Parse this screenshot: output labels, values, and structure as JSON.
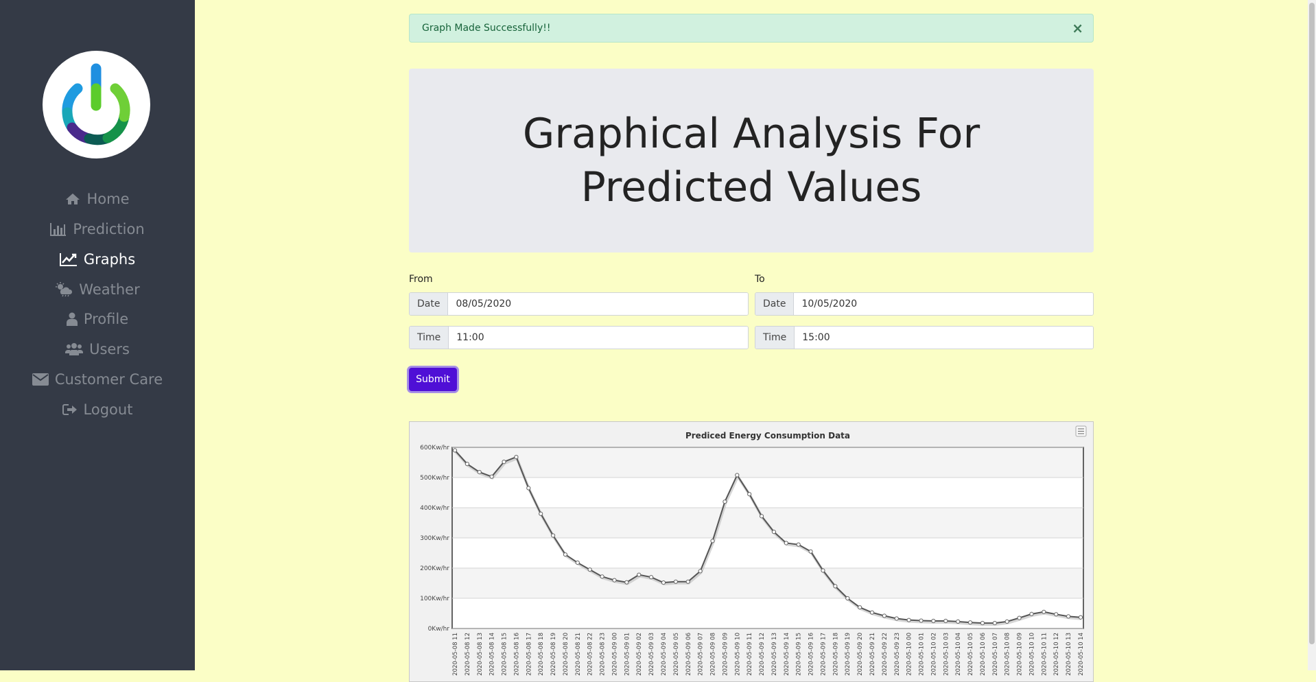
{
  "colors": {
    "sidebar_bg": "#343a46",
    "page_bg": "#fbfec6",
    "accent": "#4f0fd6",
    "success_bg": "#d1f1df",
    "nav_inactive": "#868b93",
    "nav_active": "#ffffff"
  },
  "sidebar": {
    "logo_icon": "power-icon",
    "items": [
      {
        "label": "Home",
        "icon": "home-icon",
        "active": false
      },
      {
        "label": "Prediction",
        "icon": "bar-chart-icon",
        "active": false
      },
      {
        "label": "Graphs",
        "icon": "line-chart-icon",
        "active": true
      },
      {
        "label": "Weather",
        "icon": "weather-icon",
        "active": false
      },
      {
        "label": "Profile",
        "icon": "user-icon",
        "active": false
      },
      {
        "label": "Users",
        "icon": "users-icon",
        "active": false
      },
      {
        "label": "Customer Care",
        "icon": "envelope-icon",
        "active": false
      },
      {
        "label": "Logout",
        "icon": "sign-out-icon",
        "active": false
      }
    ]
  },
  "alert": {
    "message": "Graph Made Successfully!!",
    "close": "×"
  },
  "page": {
    "title": "Graphical Analysis For Predicted Values"
  },
  "form": {
    "from_label": "From",
    "to_label": "To",
    "date_label": "Date",
    "time_label": "Time",
    "from_date": "08/05/2020",
    "from_time": "11:00",
    "to_date": "10/05/2020",
    "to_time": "15:00",
    "submit_label": "Submit"
  },
  "chart_data": {
    "type": "line",
    "title": "Prediced Energy Consumption Data",
    "xlabel": "",
    "ylabel": "",
    "ylim": [
      0,
      600
    ],
    "y_ticks": [
      0,
      100,
      200,
      300,
      400,
      500,
      600
    ],
    "y_unit": "Kw/hr",
    "grid": "horizontal bands",
    "menu_icon": "chart-menu-icon",
    "x": [
      "2020-05-08 11",
      "2020-05-08 12",
      "2020-05-08 13",
      "2020-05-08 14",
      "2020-05-08 15",
      "2020-05-08 16",
      "2020-05-08 17",
      "2020-05-08 18",
      "2020-05-08 19",
      "2020-05-08 20",
      "2020-05-08 21",
      "2020-05-08 22",
      "2020-05-08 23",
      "2020-05-09 00",
      "2020-05-09 01",
      "2020-05-09 02",
      "2020-05-09 03",
      "2020-05-09 04",
      "2020-05-09 05",
      "2020-05-09 06",
      "2020-05-09 07",
      "2020-05-09 08",
      "2020-05-09 09",
      "2020-05-09 10",
      "2020-05-09 11",
      "2020-05-09 12",
      "2020-05-09 13",
      "2020-05-09 14",
      "2020-05-09 15",
      "2020-05-09 16",
      "2020-05-09 17",
      "2020-05-09 18",
      "2020-05-09 19",
      "2020-05-09 20",
      "2020-05-09 21",
      "2020-05-09 22",
      "2020-05-09 23",
      "2020-05-10 00",
      "2020-05-10 01",
      "2020-05-10 02",
      "2020-05-10 03",
      "2020-05-10 04",
      "2020-05-10 05",
      "2020-05-10 06",
      "2020-05-10 07",
      "2020-05-10 08",
      "2020-05-10 09",
      "2020-05-10 10",
      "2020-05-10 11",
      "2020-05-10 12",
      "2020-05-10 13",
      "2020-05-10 14"
    ],
    "values": [
      590,
      545,
      518,
      503,
      552,
      568,
      465,
      380,
      308,
      245,
      218,
      195,
      172,
      160,
      153,
      178,
      170,
      152,
      155,
      155,
      190,
      290,
      420,
      508,
      445,
      372,
      320,
      283,
      278,
      255,
      192,
      140,
      100,
      70,
      53,
      42,
      33,
      28,
      26,
      25,
      25,
      23,
      20,
      18,
      18,
      23,
      35,
      48,
      55,
      47,
      40,
      37
    ],
    "tick_label_prefix_hidden": "20",
    "series": [
      {
        "values_ref": "values"
      }
    ]
  }
}
